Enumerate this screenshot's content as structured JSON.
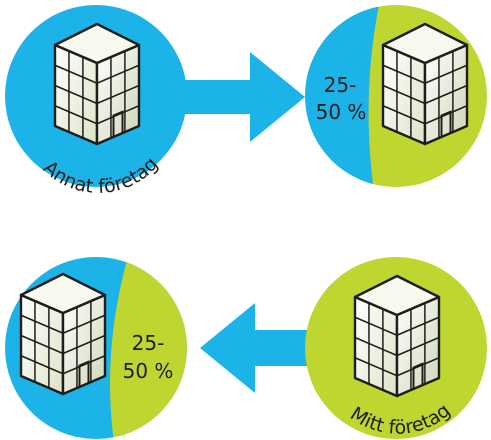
{
  "colors": {
    "blue": "#1bb3e8",
    "green": "#bfd630",
    "outline": "#1d1d1b",
    "white": "#ffffff"
  },
  "icons": {
    "building": "building-icon",
    "arrow": "arrow-icon"
  },
  "labels": {
    "other_company": "Annat företag",
    "my_company": "Mitt företag",
    "share_top_line1": "25-",
    "share_top_line2": "50 %",
    "share_bottom_line1": "25-",
    "share_bottom_line2": "50 %"
  }
}
